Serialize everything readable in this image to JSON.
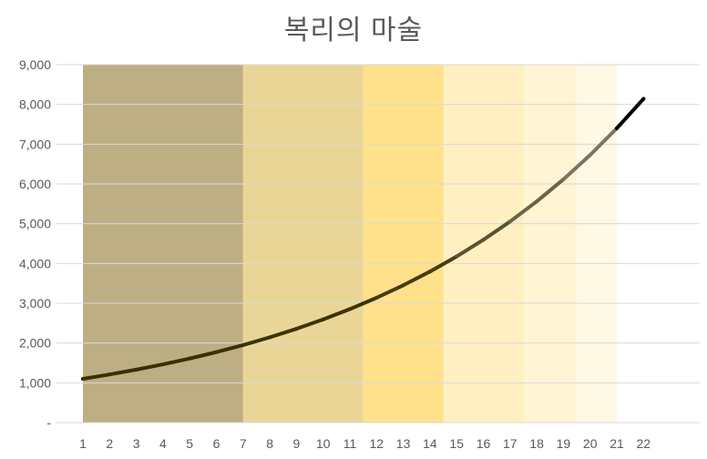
{
  "chart_data": {
    "type": "line",
    "title": "복리의 마술",
    "xlabel": "",
    "ylabel": "",
    "ylim": [
      0,
      9000
    ],
    "y_ticks": [
      {
        "value": 0,
        "label": "-"
      },
      {
        "value": 1000,
        "label": "1,000"
      },
      {
        "value": 2000,
        "label": "2,000"
      },
      {
        "value": 3000,
        "label": "3,000"
      },
      {
        "value": 4000,
        "label": "4,000"
      },
      {
        "value": 5000,
        "label": "5,000"
      },
      {
        "value": 6000,
        "label": "6,000"
      },
      {
        "value": 7000,
        "label": "7,000"
      },
      {
        "value": 8000,
        "label": "8,000"
      },
      {
        "value": 9000,
        "label": "9,000"
      }
    ],
    "categories": [
      "1",
      "2",
      "3",
      "4",
      "5",
      "6",
      "7",
      "8",
      "9",
      "10",
      "11",
      "12",
      "13",
      "14",
      "15",
      "16",
      "17",
      "18",
      "19",
      "20",
      "21",
      "22"
    ],
    "grid": true,
    "legend": "none",
    "series": [
      {
        "values": [
          1100,
          1210,
          1331,
          1464,
          1611,
          1772,
          1949,
          2144,
          2358,
          2594,
          2853,
          3138,
          3452,
          3797,
          4177,
          4595,
          5054,
          5560,
          6116,
          6727,
          7400,
          8140
        ],
        "segment_colors": [
          "#3a3000",
          "#3a3000",
          "#3a3000",
          "#3a3000",
          "#3a3000",
          "#3a3000",
          "#3d3200",
          "#3d3200",
          "#3d3200",
          "#3d3200",
          "#3d3200",
          "#463c10",
          "#463c10",
          "#463c10",
          "#5a5232",
          "#5a5232",
          "#6b6448",
          "#6b6448",
          "#7a7462",
          "#7a7462",
          "#000000"
        ]
      }
    ],
    "bands": [
      {
        "from": 1,
        "to": 7,
        "color": "#a8935a",
        "opacity": 0.75
      },
      {
        "from": 7,
        "to": 11.5,
        "color": "#e0c56a",
        "opacity": 0.7
      },
      {
        "from": 11.5,
        "to": 14.5,
        "color": "#ffd766",
        "opacity": 0.75
      },
      {
        "from": 14.5,
        "to": 17.5,
        "color": "#ffe8a6",
        "opacity": 0.7
      },
      {
        "from": 17.5,
        "to": 19.5,
        "color": "#fff0c4",
        "opacity": 0.75
      },
      {
        "from": 19.5,
        "to": 21,
        "color": "#fff7e0",
        "opacity": 0.85
      }
    ],
    "colors": {
      "title": "#595959",
      "tick_label": "#595959",
      "gridline": "#d9d9d9",
      "axis": "#d9d9d9"
    }
  }
}
